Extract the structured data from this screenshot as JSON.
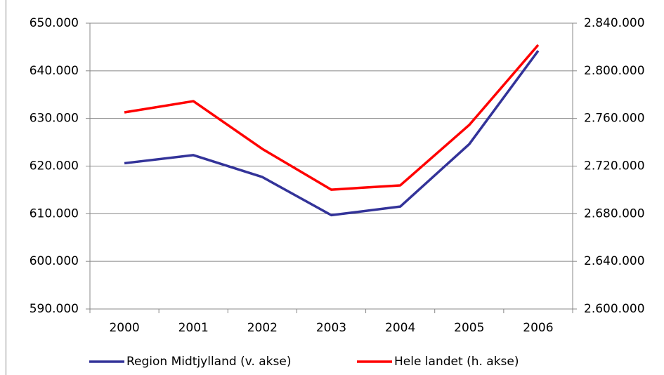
{
  "chart_data": {
    "type": "line",
    "categories": [
      "2000",
      "2001",
      "2002",
      "2003",
      "2004",
      "2005",
      "2006"
    ],
    "series": [
      {
        "name": "Region Midtjylland (v. akse)",
        "color": "#333399",
        "values": [
          620600,
          622300,
          617700,
          609700,
          611500,
          624600,
          644200
        ]
      },
      {
        "name": "Hele landet (h. akse)",
        "color": "#ff0000",
        "axis": "y2",
        "values": [
          2765100,
          2774500,
          2734400,
          2700200,
          2703800,
          2754500,
          2821700
        ]
      }
    ],
    "ylim": [
      590000,
      650000
    ],
    "yticks": [
      {
        "value": 590000,
        "label": "590.000"
      },
      {
        "value": 600000,
        "label": "600.000"
      },
      {
        "value": 610000,
        "label": "610.000"
      },
      {
        "value": 620000,
        "label": "620.000"
      },
      {
        "value": 630000,
        "label": "630.000"
      },
      {
        "value": 640000,
        "label": "640.000"
      },
      {
        "value": 650000,
        "label": "650.000"
      }
    ],
    "y2lim": [
      2600000,
      2840000
    ],
    "y2ticks": [
      {
        "value": 2600000,
        "label": "2.600.000"
      },
      {
        "value": 2640000,
        "label": "2.640.000"
      },
      {
        "value": 2680000,
        "label": "2.680.000"
      },
      {
        "value": 2720000,
        "label": "2.720.000"
      },
      {
        "value": 2760000,
        "label": "2.760.000"
      },
      {
        "value": 2800000,
        "label": "2.800.000"
      },
      {
        "value": 2840000,
        "label": "2.840.000"
      }
    ],
    "grid": true,
    "legend": "bottom"
  }
}
